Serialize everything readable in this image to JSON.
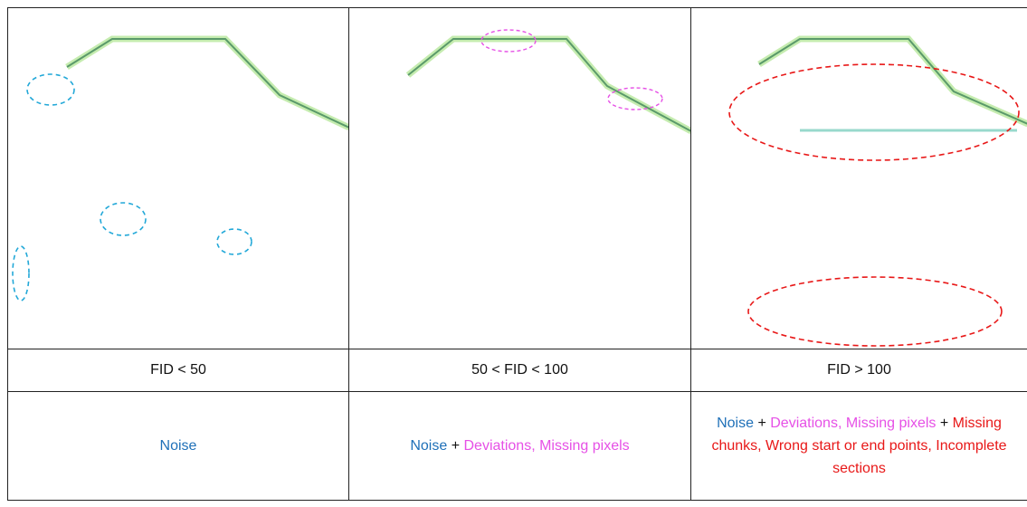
{
  "columns": [
    {
      "label": "FID < 50",
      "description": [
        {
          "text": "Noise",
          "color": "#1f70b8"
        }
      ]
    },
    {
      "label": "50 < FID < 100",
      "description": [
        {
          "text": "Noise",
          "color": "#1f70b8"
        },
        {
          "text": "+",
          "color": "#111111"
        },
        {
          "text": "Deviations, Missing pixels",
          "color": "#e650e6"
        }
      ]
    },
    {
      "label": "FID > 100",
      "description": [
        {
          "text": "Noise",
          "color": "#1f70b8"
        },
        {
          "text": "+",
          "color": "#111111"
        },
        {
          "text": "Deviations, Missing pixels",
          "color": "#e650e6"
        },
        {
          "text": "+",
          "color": "#111111"
        },
        {
          "text": "Missing chunks, Wrong start or end points, Incomplete sections",
          "color": "#e81818"
        }
      ]
    }
  ]
}
